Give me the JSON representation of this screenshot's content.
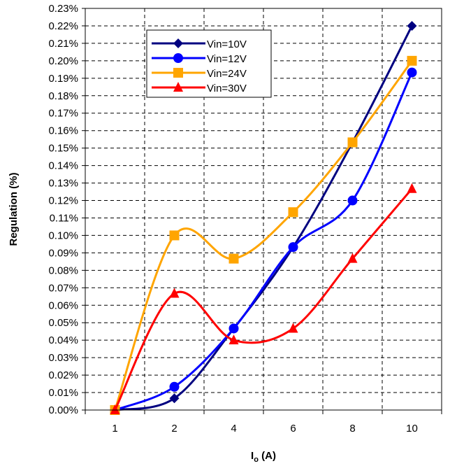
{
  "chart_data": {
    "type": "line",
    "title": "",
    "xlabel": "I",
    "xlabel_sub": "o",
    "xlabel_unit": " (A)",
    "ylabel": "Regulation (%)",
    "categories": [
      "1",
      "2",
      "4",
      "6",
      "8",
      "10"
    ],
    "ylim": [
      0,
      0.23
    ],
    "ytick_step": 0.01,
    "ytick_labels": [
      "0.00%",
      "0.01%",
      "0.02%",
      "0.03%",
      "0.04%",
      "0.05%",
      "0.06%",
      "0.07%",
      "0.08%",
      "0.09%",
      "0.10%",
      "0.11%",
      "0.12%",
      "0.13%",
      "0.14%",
      "0.15%",
      "0.16%",
      "0.17%",
      "0.18%",
      "0.19%",
      "0.20%",
      "0.21%",
      "0.22%",
      "0.23%"
    ],
    "grid": "dashed vertical and horizontal",
    "legend_position": "top-left",
    "smooth": true,
    "series": [
      {
        "name": "Vin=10V",
        "color": "#000080",
        "marker": "diamond",
        "values": [
          0.0,
          0.0067,
          0.0467,
          0.0933,
          0.1533,
          0.22
        ]
      },
      {
        "name": "Vin=12V",
        "color": "#0000ff",
        "marker": "circle",
        "values": [
          0.0,
          0.0133,
          0.0467,
          0.0933,
          0.12,
          0.1933
        ]
      },
      {
        "name": "Vin=24V",
        "color": "#ffa500",
        "marker": "square",
        "values": [
          0.0,
          0.1,
          0.0867,
          0.1133,
          0.1533,
          0.2
        ]
      },
      {
        "name": "Vin=30V",
        "color": "#ff0000",
        "marker": "triangle",
        "values": [
          0.0,
          0.0667,
          0.04,
          0.0467,
          0.0867,
          0.1267
        ]
      }
    ]
  }
}
